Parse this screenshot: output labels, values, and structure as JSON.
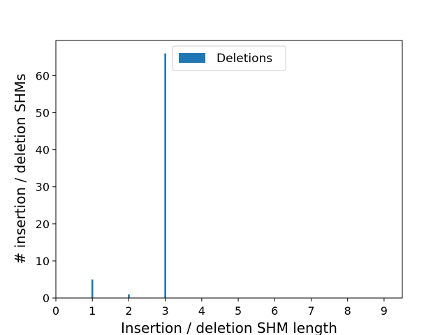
{
  "chart_data": {
    "type": "bar",
    "title": "",
    "xlabel": "Insertion / deletion SHM length",
    "ylabel": "# insertion / deletion SHMs",
    "xlim": [
      0,
      9.5
    ],
    "ylim": [
      0,
      69.5
    ],
    "xticks": [
      0,
      1,
      2,
      3,
      4,
      5,
      6,
      7,
      8,
      9
    ],
    "yticks": [
      0,
      10,
      20,
      30,
      40,
      50,
      60
    ],
    "series": [
      {
        "name": "Deletions",
        "color": "#1f77b4",
        "x": [
          1,
          2,
          3
        ],
        "values": [
          5,
          1,
          66
        ]
      }
    ],
    "legend": {
      "location": "upper center"
    },
    "grid": false
  }
}
